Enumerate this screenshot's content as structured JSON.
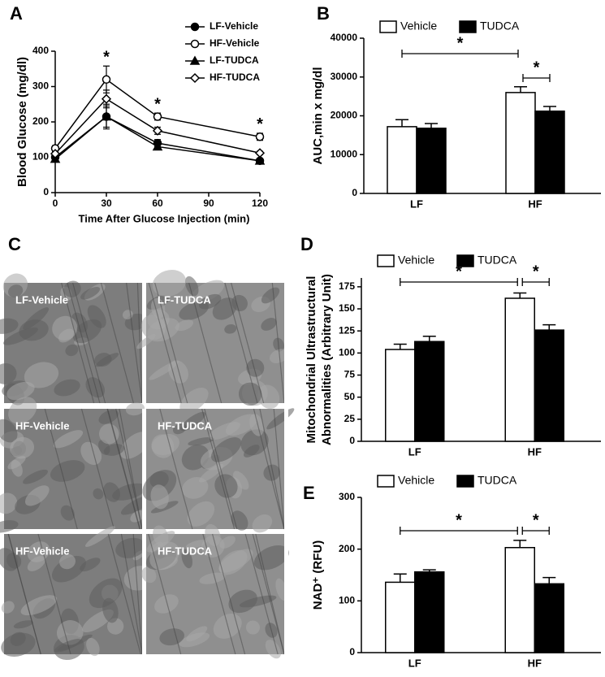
{
  "chart_data": [
    {
      "type": "line",
      "panel": "A",
      "xlabel": "Time After Glucose Injection (min)",
      "ylabel": "Blood Glucose (mg/dl)",
      "x": [
        0,
        30,
        60,
        120
      ],
      "xlim": [
        0,
        120
      ],
      "xticks": [
        0,
        30,
        60,
        90,
        120
      ],
      "ylim": [
        0,
        400
      ],
      "yticks": [
        0,
        100,
        200,
        300,
        400
      ],
      "series": [
        {
          "name": "LF-Vehicle",
          "color": "#000000",
          "marker": "circle",
          "marker_fill": "#000000",
          "values": [
            100,
            215,
            140,
            90
          ],
          "errors": [
            5,
            35,
            10,
            5
          ]
        },
        {
          "name": "HF-Vehicle",
          "color": "#000000",
          "marker": "circle",
          "marker_fill": "#ffffff",
          "values": [
            125,
            320,
            215,
            158
          ],
          "errors": [
            8,
            38,
            10,
            10
          ]
        },
        {
          "name": "LF-TUDCA",
          "color": "#000000",
          "marker": "triangle",
          "marker_fill": "#000000",
          "values": [
            95,
            215,
            130,
            90
          ],
          "errors": [
            5,
            30,
            8,
            5
          ]
        },
        {
          "name": "HF-TUDCA",
          "color": "#000000",
          "marker": "diamond",
          "marker_fill": "#ffffff",
          "values": [
            110,
            265,
            175,
            112
          ],
          "errors": [
            5,
            25,
            10,
            5
          ]
        }
      ],
      "annotations": [
        {
          "text": "*",
          "x": 30
        },
        {
          "text": "*",
          "x": 60
        },
        {
          "text": "*",
          "x": 120
        }
      ]
    },
    {
      "type": "bar",
      "panel": "B",
      "ylabel": "AUC,min x mg/dl",
      "categories": [
        "LF",
        "HF"
      ],
      "ylim": [
        0,
        40000
      ],
      "yticks": [
        0,
        10000,
        20000,
        30000,
        40000
      ],
      "series": [
        {
          "name": "Vehicle",
          "color": "#ffffff",
          "values": [
            17200,
            26000
          ],
          "errors": [
            1800,
            1500
          ]
        },
        {
          "name": "TUDCA",
          "color": "#000000",
          "values": [
            16800,
            21200
          ],
          "errors": [
            1200,
            1200
          ]
        }
      ],
      "annotations": [
        "*",
        "*"
      ]
    },
    {
      "type": "bar",
      "panel": "D",
      "ylabel": [
        "Mitochondrial Ultrastructural",
        "Abnormalities (Arbitrary Unit)"
      ],
      "categories": [
        "LF",
        "HF"
      ],
      "ylim": [
        0,
        185
      ],
      "yticks": [
        0,
        25,
        50,
        75,
        100,
        125,
        150,
        175
      ],
      "series": [
        {
          "name": "Vehicle",
          "color": "#ffffff",
          "values": [
            104,
            162
          ],
          "errors": [
            6,
            6
          ]
        },
        {
          "name": "TUDCA",
          "color": "#000000",
          "values": [
            113,
            126
          ],
          "errors": [
            6,
            6
          ]
        }
      ],
      "annotations": [
        "*",
        "*"
      ]
    },
    {
      "type": "bar",
      "panel": "E",
      "ylabel": "NAD⁺ (RFU)",
      "categories": [
        "LF",
        "HF"
      ],
      "ylim": [
        0,
        300
      ],
      "yticks": [
        0,
        100,
        200,
        300
      ],
      "series": [
        {
          "name": "Vehicle",
          "color": "#ffffff",
          "values": [
            136,
            203
          ],
          "errors": [
            16,
            14
          ]
        },
        {
          "name": "TUDCA",
          "color": "#000000",
          "values": [
            156,
            133
          ],
          "errors": [
            4,
            12
          ]
        }
      ],
      "annotations": [
        "*",
        "*"
      ]
    }
  ],
  "image_panel": {
    "panel": "C",
    "images": [
      "LF-Vehicle",
      "LF-TUDCA",
      "HF-Vehicle",
      "HF-TUDCA",
      "HF-Vehicle",
      "HF-TUDCA"
    ]
  }
}
